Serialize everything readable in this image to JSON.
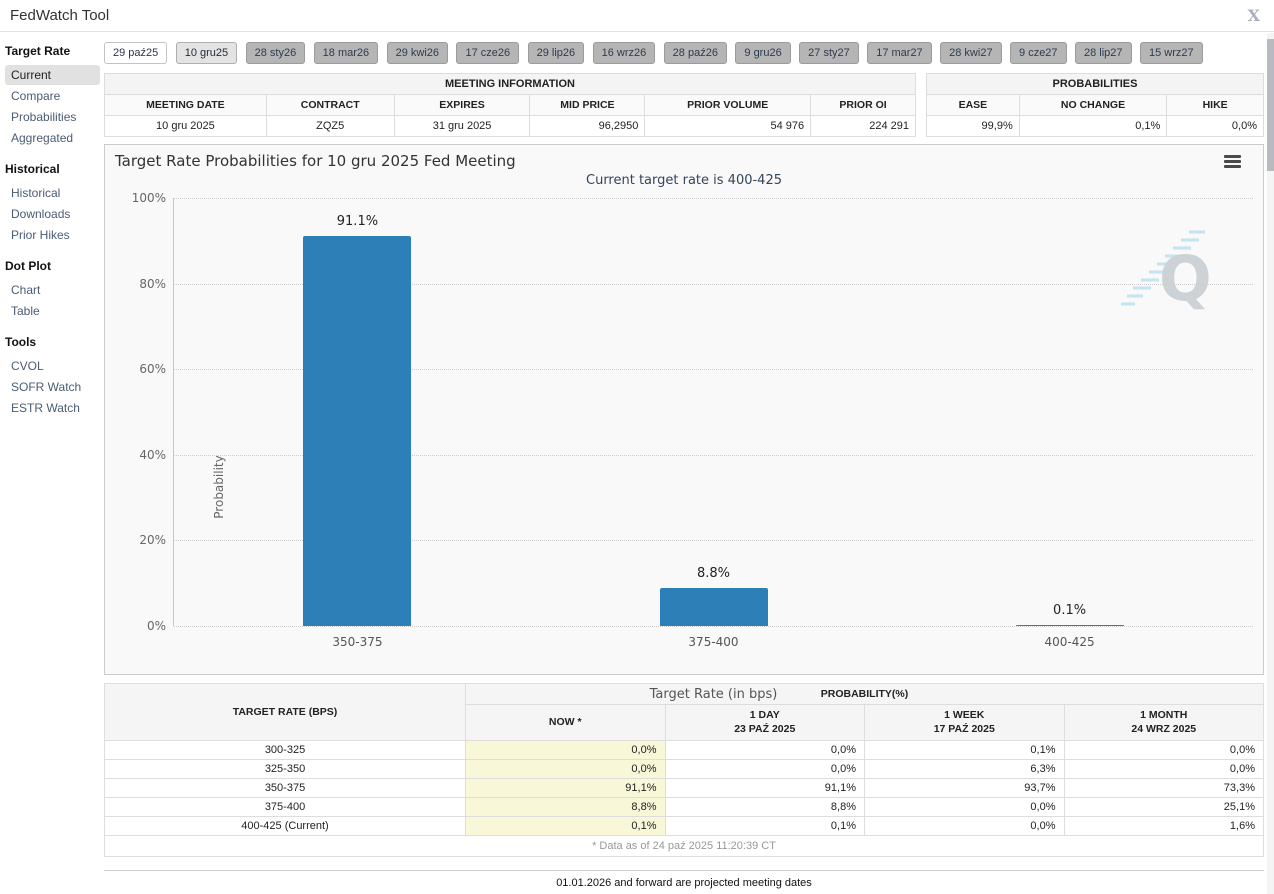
{
  "window": {
    "title": "FedWatch Tool",
    "close_label": "X"
  },
  "sidebar": {
    "sections": [
      {
        "header": "Target Rate",
        "items": [
          {
            "label": "Current",
            "active": true
          },
          {
            "label": "Compare"
          },
          {
            "label": "Probabilities"
          },
          {
            "label": "Aggregated"
          }
        ]
      },
      {
        "header": "Historical",
        "items": [
          {
            "label": "Historical"
          },
          {
            "label": "Downloads"
          },
          {
            "label": "Prior Hikes"
          }
        ]
      },
      {
        "header": "Dot Plot",
        "items": [
          {
            "label": "Chart"
          },
          {
            "label": "Table"
          }
        ]
      },
      {
        "header": "Tools",
        "items": [
          {
            "label": "CVOL"
          },
          {
            "label": "SOFR Watch"
          },
          {
            "label": "ESTR Watch"
          }
        ]
      }
    ]
  },
  "tabs": [
    {
      "label": "29 paź25",
      "state": "outline"
    },
    {
      "label": "10 gru25",
      "state": "selected"
    },
    {
      "label": "28 sty26",
      "state": "default"
    },
    {
      "label": "18 mar26",
      "state": "default"
    },
    {
      "label": "29 kwi26",
      "state": "default"
    },
    {
      "label": "17 cze26",
      "state": "default"
    },
    {
      "label": "29 lip26",
      "state": "default"
    },
    {
      "label": "16 wrz26",
      "state": "default"
    },
    {
      "label": "28 paź26",
      "state": "default"
    },
    {
      "label": "9 gru26",
      "state": "default"
    },
    {
      "label": "27 sty27",
      "state": "default"
    },
    {
      "label": "17 mar27",
      "state": "default"
    },
    {
      "label": "28 kwi27",
      "state": "default"
    },
    {
      "label": "9 cze27",
      "state": "default"
    },
    {
      "label": "28 lip27",
      "state": "default"
    },
    {
      "label": "15 wrz27",
      "state": "default"
    }
  ],
  "meeting_info": {
    "title": "MEETING INFORMATION",
    "columns": [
      "MEETING DATE",
      "CONTRACT",
      "EXPIRES",
      "MID PRICE",
      "PRIOR VOLUME",
      "PRIOR OI"
    ],
    "values": [
      "10 gru 2025",
      "ZQZ5",
      "31 gru 2025",
      "96,2950",
      "54 976",
      "224 291"
    ]
  },
  "probabilities_summary": {
    "title": "PROBABILITIES",
    "columns": [
      "EASE",
      "NO CHANGE",
      "HIKE"
    ],
    "values": [
      "99,9%",
      "0,1%",
      "0,0%"
    ]
  },
  "chart_data": {
    "type": "bar",
    "title": "Target Rate Probabilities for 10 gru 2025 Fed Meeting",
    "subtitle": "Current target rate is 400-425",
    "categories": [
      "350-375",
      "375-400",
      "400-425"
    ],
    "values": [
      91.1,
      8.8,
      0.1
    ],
    "value_labels": [
      "91.1%",
      "8.8%",
      "0.1%"
    ],
    "xlabel": "Target Rate (in bps)",
    "ylabel": "Probability",
    "ylim": [
      0,
      100
    ],
    "yticks": [
      "0%",
      "20%",
      "40%",
      "60%",
      "80%",
      "100%"
    ],
    "grid": "dotted-horizontal",
    "legend": "none",
    "bar_color": "#2d7fb8"
  },
  "probability_table": {
    "corner_header": "TARGET RATE (BPS)",
    "group_header": "PROBABILITY(%)",
    "columns": [
      {
        "line1": "NOW *",
        "line2": ""
      },
      {
        "line1": "1 DAY",
        "line2": "23 PAŹ 2025"
      },
      {
        "line1": "1 WEEK",
        "line2": "17 PAŹ 2025"
      },
      {
        "line1": "1 MONTH",
        "line2": "24 WRZ 2025"
      }
    ],
    "rows": [
      {
        "rate": "300-325",
        "now": "0,0%",
        "day": "0,0%",
        "week": "0,1%",
        "month": "0,0%"
      },
      {
        "rate": "325-350",
        "now": "0,0%",
        "day": "0,0%",
        "week": "6,3%",
        "month": "0,0%"
      },
      {
        "rate": "350-375",
        "now": "91,1%",
        "day": "91,1%",
        "week": "93,7%",
        "month": "73,3%"
      },
      {
        "rate": "375-400",
        "now": "8,8%",
        "day": "8,8%",
        "week": "0,0%",
        "month": "25,1%"
      },
      {
        "rate": "400-425 (Current)",
        "now": "0,1%",
        "day": "0,1%",
        "week": "0,0%",
        "month": "1,6%"
      }
    ],
    "footnote": "* Data as of 24 paź 2025 11:20:39 CT"
  },
  "footer": {
    "note": "01.01.2026 and forward are projected meeting dates"
  },
  "colors": {
    "bar": "#2d7fb8",
    "now_column_bg": "#f8f7d8",
    "subtitle_text": "#33455c"
  }
}
